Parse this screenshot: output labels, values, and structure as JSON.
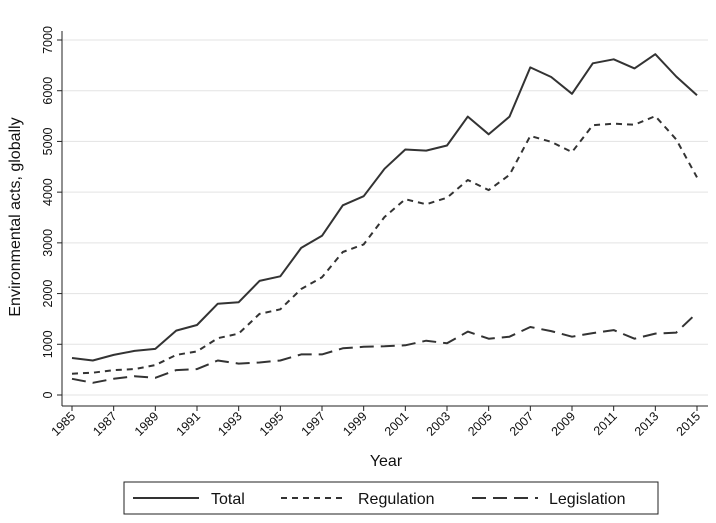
{
  "chart_data": {
    "type": "line",
    "title": "",
    "xlabel": "Year",
    "ylabel": "Environmental acts, globally",
    "ylim": [
      0,
      7000
    ],
    "xlim": [
      1985,
      2015
    ],
    "yticks": [
      0,
      1000,
      2000,
      3000,
      4000,
      5000,
      6000,
      7000
    ],
    "xticks": [
      1985,
      1987,
      1989,
      1991,
      1993,
      1995,
      1997,
      1999,
      2001,
      2003,
      2005,
      2007,
      2009,
      2011,
      2013,
      2015
    ],
    "grid": "horizontal",
    "legend_position": "bottom",
    "x": [
      1985,
      1986,
      1987,
      1988,
      1989,
      1990,
      1991,
      1992,
      1993,
      1994,
      1995,
      1996,
      1997,
      1998,
      1999,
      2000,
      2001,
      2002,
      2003,
      2004,
      2005,
      2006,
      2007,
      2008,
      2009,
      2010,
      2011,
      2012,
      2013,
      2014,
      2015
    ],
    "series": [
      {
        "name": "Total",
        "dash": "solid",
        "values": [
          730,
          680,
          790,
          870,
          910,
          1270,
          1380,
          1800,
          1830,
          2250,
          2340,
          2900,
          3140,
          3740,
          3920,
          4460,
          4840,
          4820,
          4920,
          5490,
          5140,
          5490,
          6460,
          6270,
          5940,
          6540,
          6620,
          6440,
          6720,
          6280,
          5910
        ]
      },
      {
        "name": "Regulation",
        "dash": "short",
        "values": [
          420,
          440,
          490,
          510,
          590,
          790,
          860,
          1120,
          1210,
          1600,
          1690,
          2090,
          2320,
          2820,
          2970,
          3510,
          3860,
          3760,
          3890,
          4240,
          4040,
          4340,
          5110,
          4990,
          4790,
          5320,
          5350,
          5330,
          5500,
          5040,
          4290
        ]
      },
      {
        "name": "Legislation",
        "dash": "long",
        "values": [
          320,
          240,
          320,
          370,
          340,
          490,
          510,
          680,
          620,
          640,
          680,
          800,
          800,
          920,
          950,
          960,
          980,
          1070,
          1020,
          1250,
          1110,
          1150,
          1340,
          1260,
          1150,
          1220,
          1280,
          1110,
          1210,
          1230,
          1620
        ]
      }
    ]
  }
}
